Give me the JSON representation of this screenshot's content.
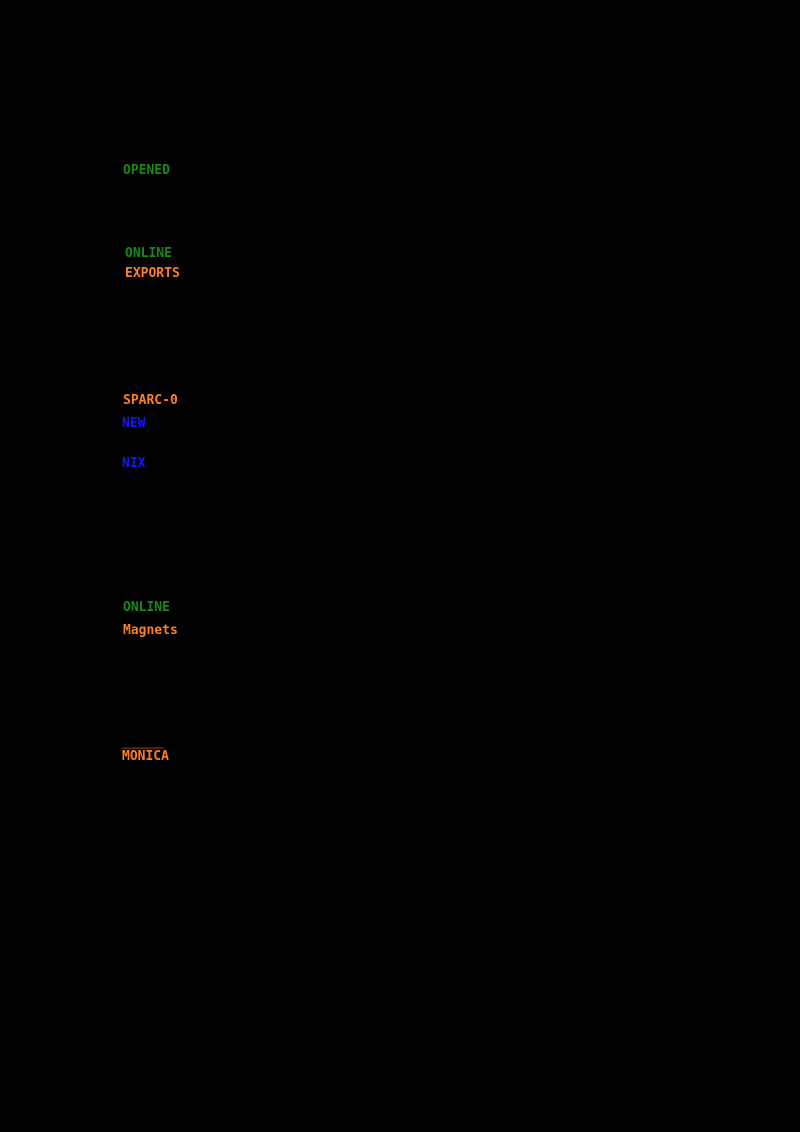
{
  "screen": {
    "background_color": "#000000",
    "description": "Mostly black terminal-like screen with sparse colored text fragments along the left column"
  },
  "colors": {
    "green": "#158a15",
    "orange": "#ff7f1e",
    "blue": "#1414ff",
    "black": "#000000"
  },
  "fragments": [
    {
      "text": "OPENED",
      "color": "green"
    },
    {
      "text": "ONLINE",
      "color": "green"
    },
    {
      "text": "EXPORTS",
      "color": "orange"
    },
    {
      "text": "SPARC-0",
      "color": "orange"
    },
    {
      "text": "NEW",
      "color": "blue"
    },
    {
      "text": "NIX",
      "color": "blue"
    },
    {
      "text": "ONLINE",
      "color": "green"
    },
    {
      "text": "Magnets",
      "color": "orange"
    },
    {
      "text": "_______",
      "color": "orange-dim"
    },
    {
      "text": "MONICA",
      "color": "orange"
    }
  ]
}
